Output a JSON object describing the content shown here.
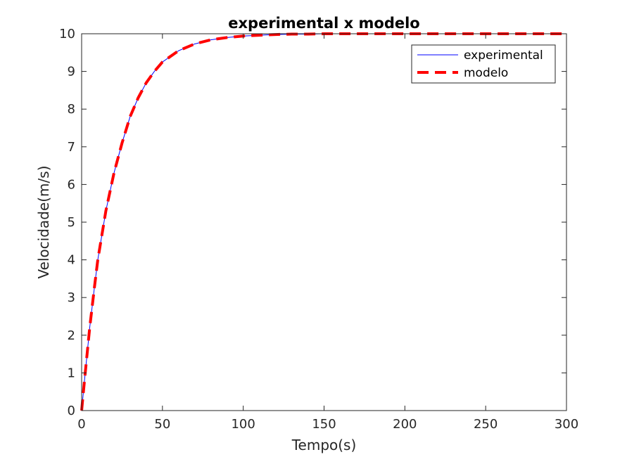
{
  "chart_data": {
    "type": "line",
    "title": "experimental x modelo",
    "xlabel": "Tempo(s)",
    "ylabel": "Velocidade(m/s)",
    "xlim": [
      0,
      300
    ],
    "ylim": [
      0,
      10
    ],
    "xticks": [
      0,
      50,
      100,
      150,
      200,
      250,
      300
    ],
    "yticks": [
      0,
      1,
      2,
      3,
      4,
      5,
      6,
      7,
      8,
      9,
      10
    ],
    "grid": false,
    "legend_position": "top-right",
    "series": [
      {
        "name": "experimental",
        "color": "#0000ff",
        "style": "solid",
        "x": [
          0,
          2,
          5,
          8,
          10,
          15,
          20,
          25,
          30,
          35,
          40,
          45,
          50,
          60,
          70,
          80,
          90,
          100,
          110,
          120,
          130,
          140,
          150,
          175,
          200,
          225,
          250,
          275,
          300
        ],
        "y": [
          0,
          0.9,
          2.2,
          3.3,
          4.0,
          5.3,
          6.3,
          7.1,
          7.8,
          8.3,
          8.7,
          9.0,
          9.25,
          9.55,
          9.73,
          9.84,
          9.9,
          9.94,
          9.96,
          9.98,
          9.99,
          9.99,
          10.0,
          10.0,
          10.0,
          10.0,
          10.0,
          10.0,
          10.0
        ]
      },
      {
        "name": "modelo",
        "color": "#ff0000",
        "style": "dashed",
        "x": [
          0,
          2,
          5,
          8,
          10,
          15,
          20,
          25,
          30,
          35,
          40,
          45,
          50,
          60,
          70,
          80,
          90,
          100,
          110,
          120,
          130,
          140,
          150,
          175,
          200,
          225,
          250,
          275,
          300
        ],
        "y": [
          0,
          0.9,
          2.2,
          3.3,
          4.0,
          5.3,
          6.3,
          7.1,
          7.8,
          8.3,
          8.7,
          9.0,
          9.25,
          9.55,
          9.73,
          9.84,
          9.9,
          9.94,
          9.96,
          9.98,
          9.99,
          9.99,
          10.0,
          10.0,
          10.0,
          10.0,
          10.0,
          10.0,
          10.0
        ]
      }
    ]
  }
}
